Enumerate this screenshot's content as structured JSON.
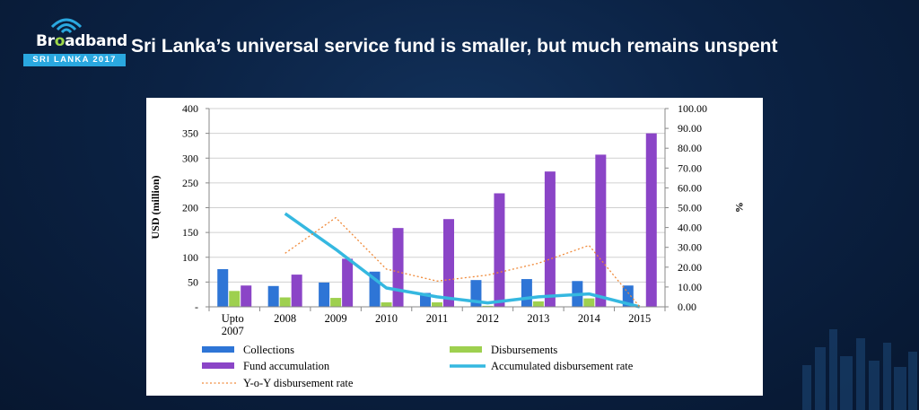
{
  "header": {
    "logo_text_pre": "Br",
    "logo_text_o": "o",
    "logo_text_post": "adband",
    "logo_subtitle": "SRI LANKA 2017",
    "title": "Sri Lanka’s universal service fund is smaller, but much remains unspent"
  },
  "colors": {
    "collections": "#2e75d6",
    "disbursements": "#9ed04f",
    "fund_accumulation": "#8b45c7",
    "accumulated_rate": "#35b8e0",
    "yoy_rate": "#f08a3a"
  },
  "chart_data": {
    "type": "bar",
    "categories": [
      "Upto 2007",
      "2008",
      "2009",
      "2010",
      "2011",
      "2012",
      "2013",
      "2014",
      "2015"
    ],
    "series": [
      {
        "name": "Collections",
        "kind": "bar",
        "axis": "left",
        "values": [
          76,
          42,
          49,
          71,
          28,
          54,
          56,
          52,
          43
        ]
      },
      {
        "name": "Disbursements",
        "kind": "bar",
        "axis": "left",
        "values": [
          32,
          19,
          18,
          9,
          9,
          2,
          11,
          17,
          0
        ]
      },
      {
        "name": "Fund accumulation",
        "kind": "bar",
        "axis": "left",
        "values": [
          43,
          65,
          97,
          159,
          177,
          229,
          273,
          307,
          350
        ]
      },
      {
        "name": "Accumulated disbursement rate",
        "kind": "line",
        "axis": "right",
        "values": [
          null,
          47,
          29,
          9.5,
          5,
          2,
          5,
          6.5,
          0
        ]
      },
      {
        "name": "Y-o-Y disbursement rate",
        "kind": "dotted-line",
        "axis": "right",
        "values": [
          null,
          27,
          45,
          19,
          13,
          16,
          22,
          31,
          0
        ]
      }
    ],
    "title": "",
    "xlabel": "",
    "ylabel": "USD (million)",
    "y2label": "%",
    "ylim": [
      0,
      400
    ],
    "y2lim": [
      0,
      100
    ],
    "yticks": [
      "-",
      "50",
      "100",
      "150",
      "200",
      "250",
      "300",
      "350",
      "400"
    ],
    "y2ticks": [
      "0.00",
      "10.00",
      "20.00",
      "30.00",
      "40.00",
      "50.00",
      "60.00",
      "70.00",
      "80.00",
      "90.00",
      "100.00"
    ],
    "grid": true,
    "legend_position": "bottom",
    "legend": [
      "Collections",
      "Disbursements",
      "Fund accumulation",
      "Accumulated disbursement rate",
      "Y-o-Y disbursement rate"
    ]
  }
}
